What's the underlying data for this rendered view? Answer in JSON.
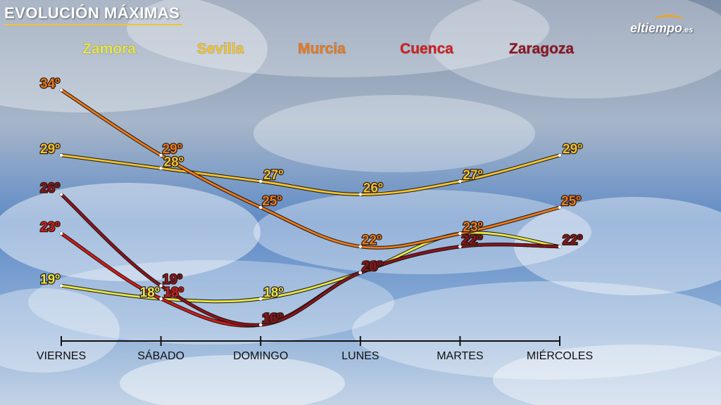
{
  "header": {
    "title": "EVOLUCIÓN MÁXIMAS",
    "logo_main": "eltiempo",
    "logo_suffix": ".es"
  },
  "chart_data": {
    "type": "line",
    "title": "EVOLUCIÓN MÁXIMAS",
    "categories": [
      "VIERNES",
      "SÁBADO",
      "DOMINGO",
      "LUNES",
      "MARTES",
      "MIÉRCOLES"
    ],
    "ylim": [
      14,
      36
    ],
    "unit": "º",
    "grid": false,
    "legend_position": "top",
    "series": [
      {
        "name": "Zamora",
        "values": [
          19,
          18,
          18,
          20,
          23,
          22
        ],
        "color": "#e6e64a"
      },
      {
        "name": "Sevilla",
        "values": [
          29,
          28,
          27,
          26,
          27,
          29
        ],
        "color": "#f2c232"
      },
      {
        "name": "Murcia",
        "values": [
          34,
          29,
          25,
          22,
          23,
          25
        ],
        "color": "#ea7a1c"
      },
      {
        "name": "Cuenca",
        "values": [
          23,
          18,
          16,
          20,
          22,
          22
        ],
        "color": "#d41c1c"
      },
      {
        "name": "Zaragoza",
        "values": [
          26,
          19,
          16,
          20,
          22,
          22
        ],
        "color": "#8e1420"
      }
    ]
  }
}
